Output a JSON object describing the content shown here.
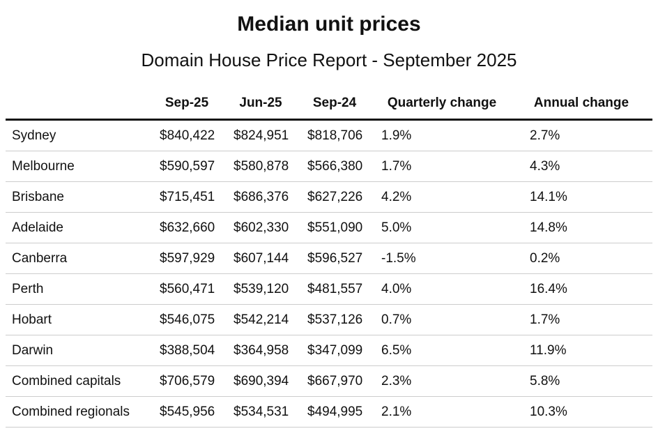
{
  "title": "Median unit prices",
  "subtitle": "Domain House Price Report - September 2025",
  "table": {
    "header": [
      "",
      "Sep-25",
      "Jun-25",
      "Sep-24",
      "Quarterly change",
      "Annual change"
    ],
    "rows": [
      [
        "Sydney",
        "$840,422",
        "$824,951",
        "$818,706",
        "1.9%",
        "2.7%"
      ],
      [
        "Melbourne",
        "$590,597",
        "$580,878",
        "$566,380",
        "1.7%",
        "4.3%"
      ],
      [
        "Brisbane",
        "$715,451",
        "$686,376",
        "$627,226",
        "4.2%",
        "14.1%"
      ],
      [
        "Adelaide",
        "$632,660",
        "$602,330",
        "$551,090",
        "5.0%",
        "14.8%"
      ],
      [
        "Canberra",
        "$597,929",
        "$607,144",
        "$596,527",
        "-1.5%",
        "0.2%"
      ],
      [
        "Perth",
        "$560,471",
        "$539,120",
        "$481,557",
        "4.0%",
        "16.4%"
      ],
      [
        "Hobart",
        "$546,075",
        "$542,214",
        "$537,126",
        "0.7%",
        "1.7%"
      ],
      [
        "Darwin",
        "$388,504",
        "$364,958",
        "$347,099",
        "6.5%",
        "11.9%"
      ],
      [
        "Combined capitals",
        "$706,579",
        "$690,394",
        "$667,970",
        "2.3%",
        "5.8%"
      ],
      [
        "Combined regionals",
        "$545,956",
        "$534,531",
        "$494,995",
        "2.1%",
        "10.3%"
      ]
    ]
  }
}
